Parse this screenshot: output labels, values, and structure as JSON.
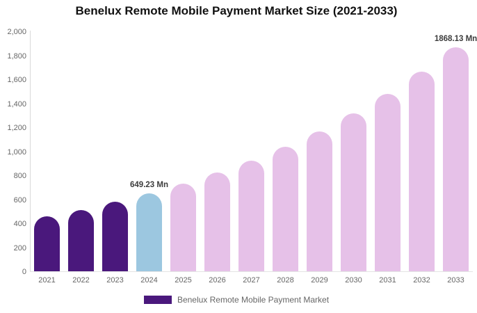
{
  "title": "Benelux Remote Mobile Payment Market Size (2021-2033)",
  "legend": {
    "label": "Benelux Remote Mobile Payment Market",
    "swatch_color": "#4a187c"
  },
  "colors": {
    "historical_bar": "#4a187c",
    "base_year_bar": "#9cc7e0",
    "forecast_bar": "#e6c1e8",
    "axis_label": "#666666",
    "data_label": "#3c3c3c",
    "title": "#111111",
    "axis_line": "#d9d9d9"
  },
  "chart_data": {
    "type": "bar",
    "title": "Benelux Remote Mobile Payment Market Size (2021-2033)",
    "xlabel": "",
    "ylabel": "",
    "categories": [
      "2021",
      "2022",
      "2023",
      "2024",
      "2025",
      "2026",
      "2027",
      "2028",
      "2029",
      "2030",
      "2031",
      "2032",
      "2033"
    ],
    "series": [
      {
        "name": "Benelux Remote Mobile Payment Market",
        "values": [
          456,
          513,
          577,
          649.23,
          730,
          821,
          924,
          1039,
          1168,
          1314,
          1478,
          1662,
          1868.13
        ]
      }
    ],
    "point_labels": [
      "",
      "",
      "",
      "649.23 Mn",
      "",
      "",
      "",
      "",
      "",
      "",
      "",
      "",
      "1868.13 Mn"
    ],
    "point_colors": [
      "#4a187c",
      "#4a187c",
      "#4a187c",
      "#9cc7e0",
      "#e6c1e8",
      "#e6c1e8",
      "#e6c1e8",
      "#e6c1e8",
      "#e6c1e8",
      "#e6c1e8",
      "#e6c1e8",
      "#e6c1e8",
      "#e6c1e8"
    ],
    "ylim": [
      0,
      2000
    ],
    "ytick_labels": [
      "0",
      "200",
      "400",
      "600",
      "800",
      "1,000",
      "1,200",
      "1,400",
      "1,600",
      "1,800",
      "2,000"
    ],
    "grid": false,
    "legend_position": "bottom"
  }
}
